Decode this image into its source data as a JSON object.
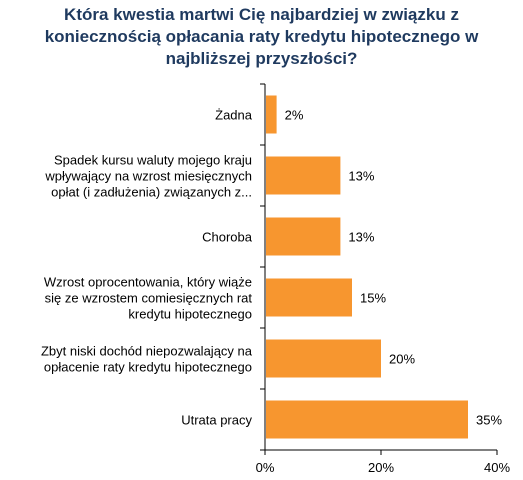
{
  "chart_data": {
    "type": "bar",
    "orientation": "horizontal",
    "title_lines": [
      "Która kwestia martwi Cię najbardziej w związku z",
      "koniecznością opłacania raty kredytu hipotecznego w",
      "najbliższej przyszłości?"
    ],
    "categories": [
      [
        "Żadna"
      ],
      [
        "Spadek kursu waluty mojego kraju",
        "wpływający na wzrost miesięcznych",
        "opłat (i zadłużenia) związanych z..."
      ],
      [
        "Choroba"
      ],
      [
        "Wzrost oprocentowania, który wiąże",
        "się ze wzrostem comiesięcznych rat",
        "kredytu hipotecznego"
      ],
      [
        "Zbyt niski dochód niepozwalający na",
        "opłacenie raty kredytu hipotecznego"
      ],
      [
        "Utrata pracy"
      ]
    ],
    "values": [
      2,
      13,
      13,
      15,
      20,
      35
    ],
    "value_labels": [
      "2%",
      "13%",
      "13%",
      "15%",
      "20%",
      "35%"
    ],
    "xlim": [
      0,
      40
    ],
    "x_ticks": [
      0,
      20,
      40
    ],
    "x_tick_labels": [
      "0%",
      "20%",
      "40%"
    ],
    "bar_color": "#f7962f",
    "grid": false,
    "legend": "none"
  }
}
